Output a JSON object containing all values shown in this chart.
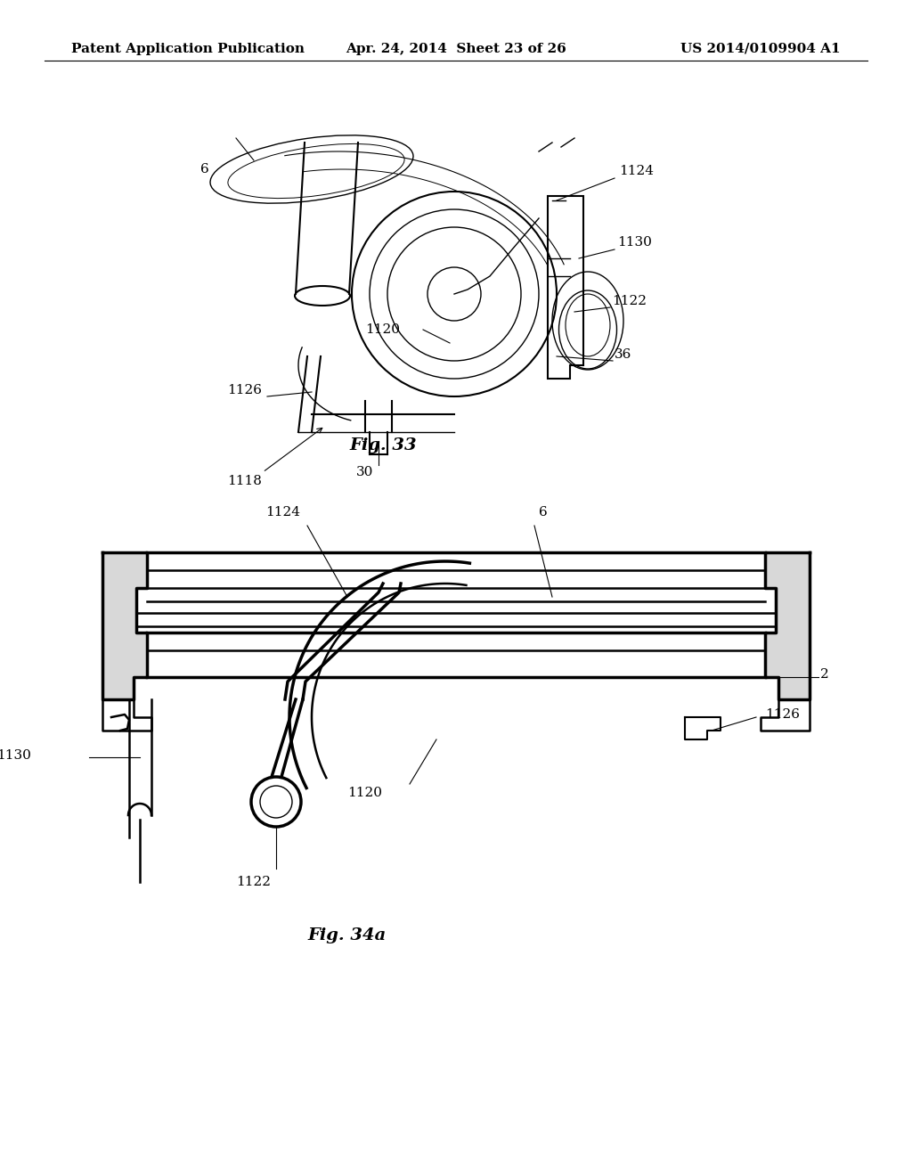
{
  "background_color": "#ffffff",
  "header": {
    "left": "Patent Application Publication",
    "center": "Apr. 24, 2014  Sheet 23 of 26",
    "right": "US 2014/0109904 A1",
    "fontsize": 11
  },
  "fig33_title": "Fig. 33",
  "fig34a_title": "Fig. 34a"
}
